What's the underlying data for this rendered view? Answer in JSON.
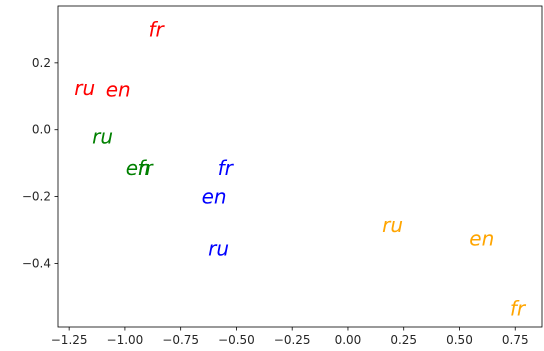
{
  "chart_data": {
    "type": "scatter",
    "title": "",
    "xlabel": "",
    "ylabel": "",
    "xlim": [
      -1.3,
      0.87
    ],
    "ylim": [
      -0.59,
      0.37
    ],
    "xticks": [
      -1.25,
      -1.0,
      -0.75,
      -0.5,
      -0.25,
      0.0,
      0.25,
      0.5,
      0.75
    ],
    "xtick_labels": [
      "−1.25",
      "−1.00",
      "−0.75",
      "−0.50",
      "−0.25",
      "0.00",
      "0.25",
      "0.50",
      "0.75"
    ],
    "yticks": [
      0.2,
      0.0,
      -0.2,
      -0.4
    ],
    "ytick_labels": [
      "0.2",
      "0.0",
      "−0.2",
      "−0.4"
    ],
    "grid": false,
    "legend": "none",
    "series": [
      {
        "color": "#ff0000",
        "points": [
          {
            "label": "fr",
            "x": -0.86,
            "y": 0.3
          },
          {
            "label": "ru",
            "x": -1.18,
            "y": 0.125
          },
          {
            "label": "en",
            "x": -1.03,
            "y": 0.12
          }
        ]
      },
      {
        "color": "#008000",
        "points": [
          {
            "label": "ru",
            "x": -1.1,
            "y": -0.02
          },
          {
            "label": "en",
            "x": -0.94,
            "y": -0.115
          },
          {
            "label": "fr",
            "x": -0.91,
            "y": -0.115
          }
        ]
      },
      {
        "color": "#0000ff",
        "points": [
          {
            "label": "fr",
            "x": -0.55,
            "y": -0.115
          },
          {
            "label": "en",
            "x": -0.6,
            "y": -0.2
          },
          {
            "label": "ru",
            "x": -0.58,
            "y": -0.355
          }
        ]
      },
      {
        "color": "#ffa500",
        "points": [
          {
            "label": "ru",
            "x": 0.2,
            "y": -0.285
          },
          {
            "label": "en",
            "x": 0.6,
            "y": -0.325
          },
          {
            "label": "fr",
            "x": 0.76,
            "y": -0.535
          }
        ]
      }
    ]
  }
}
